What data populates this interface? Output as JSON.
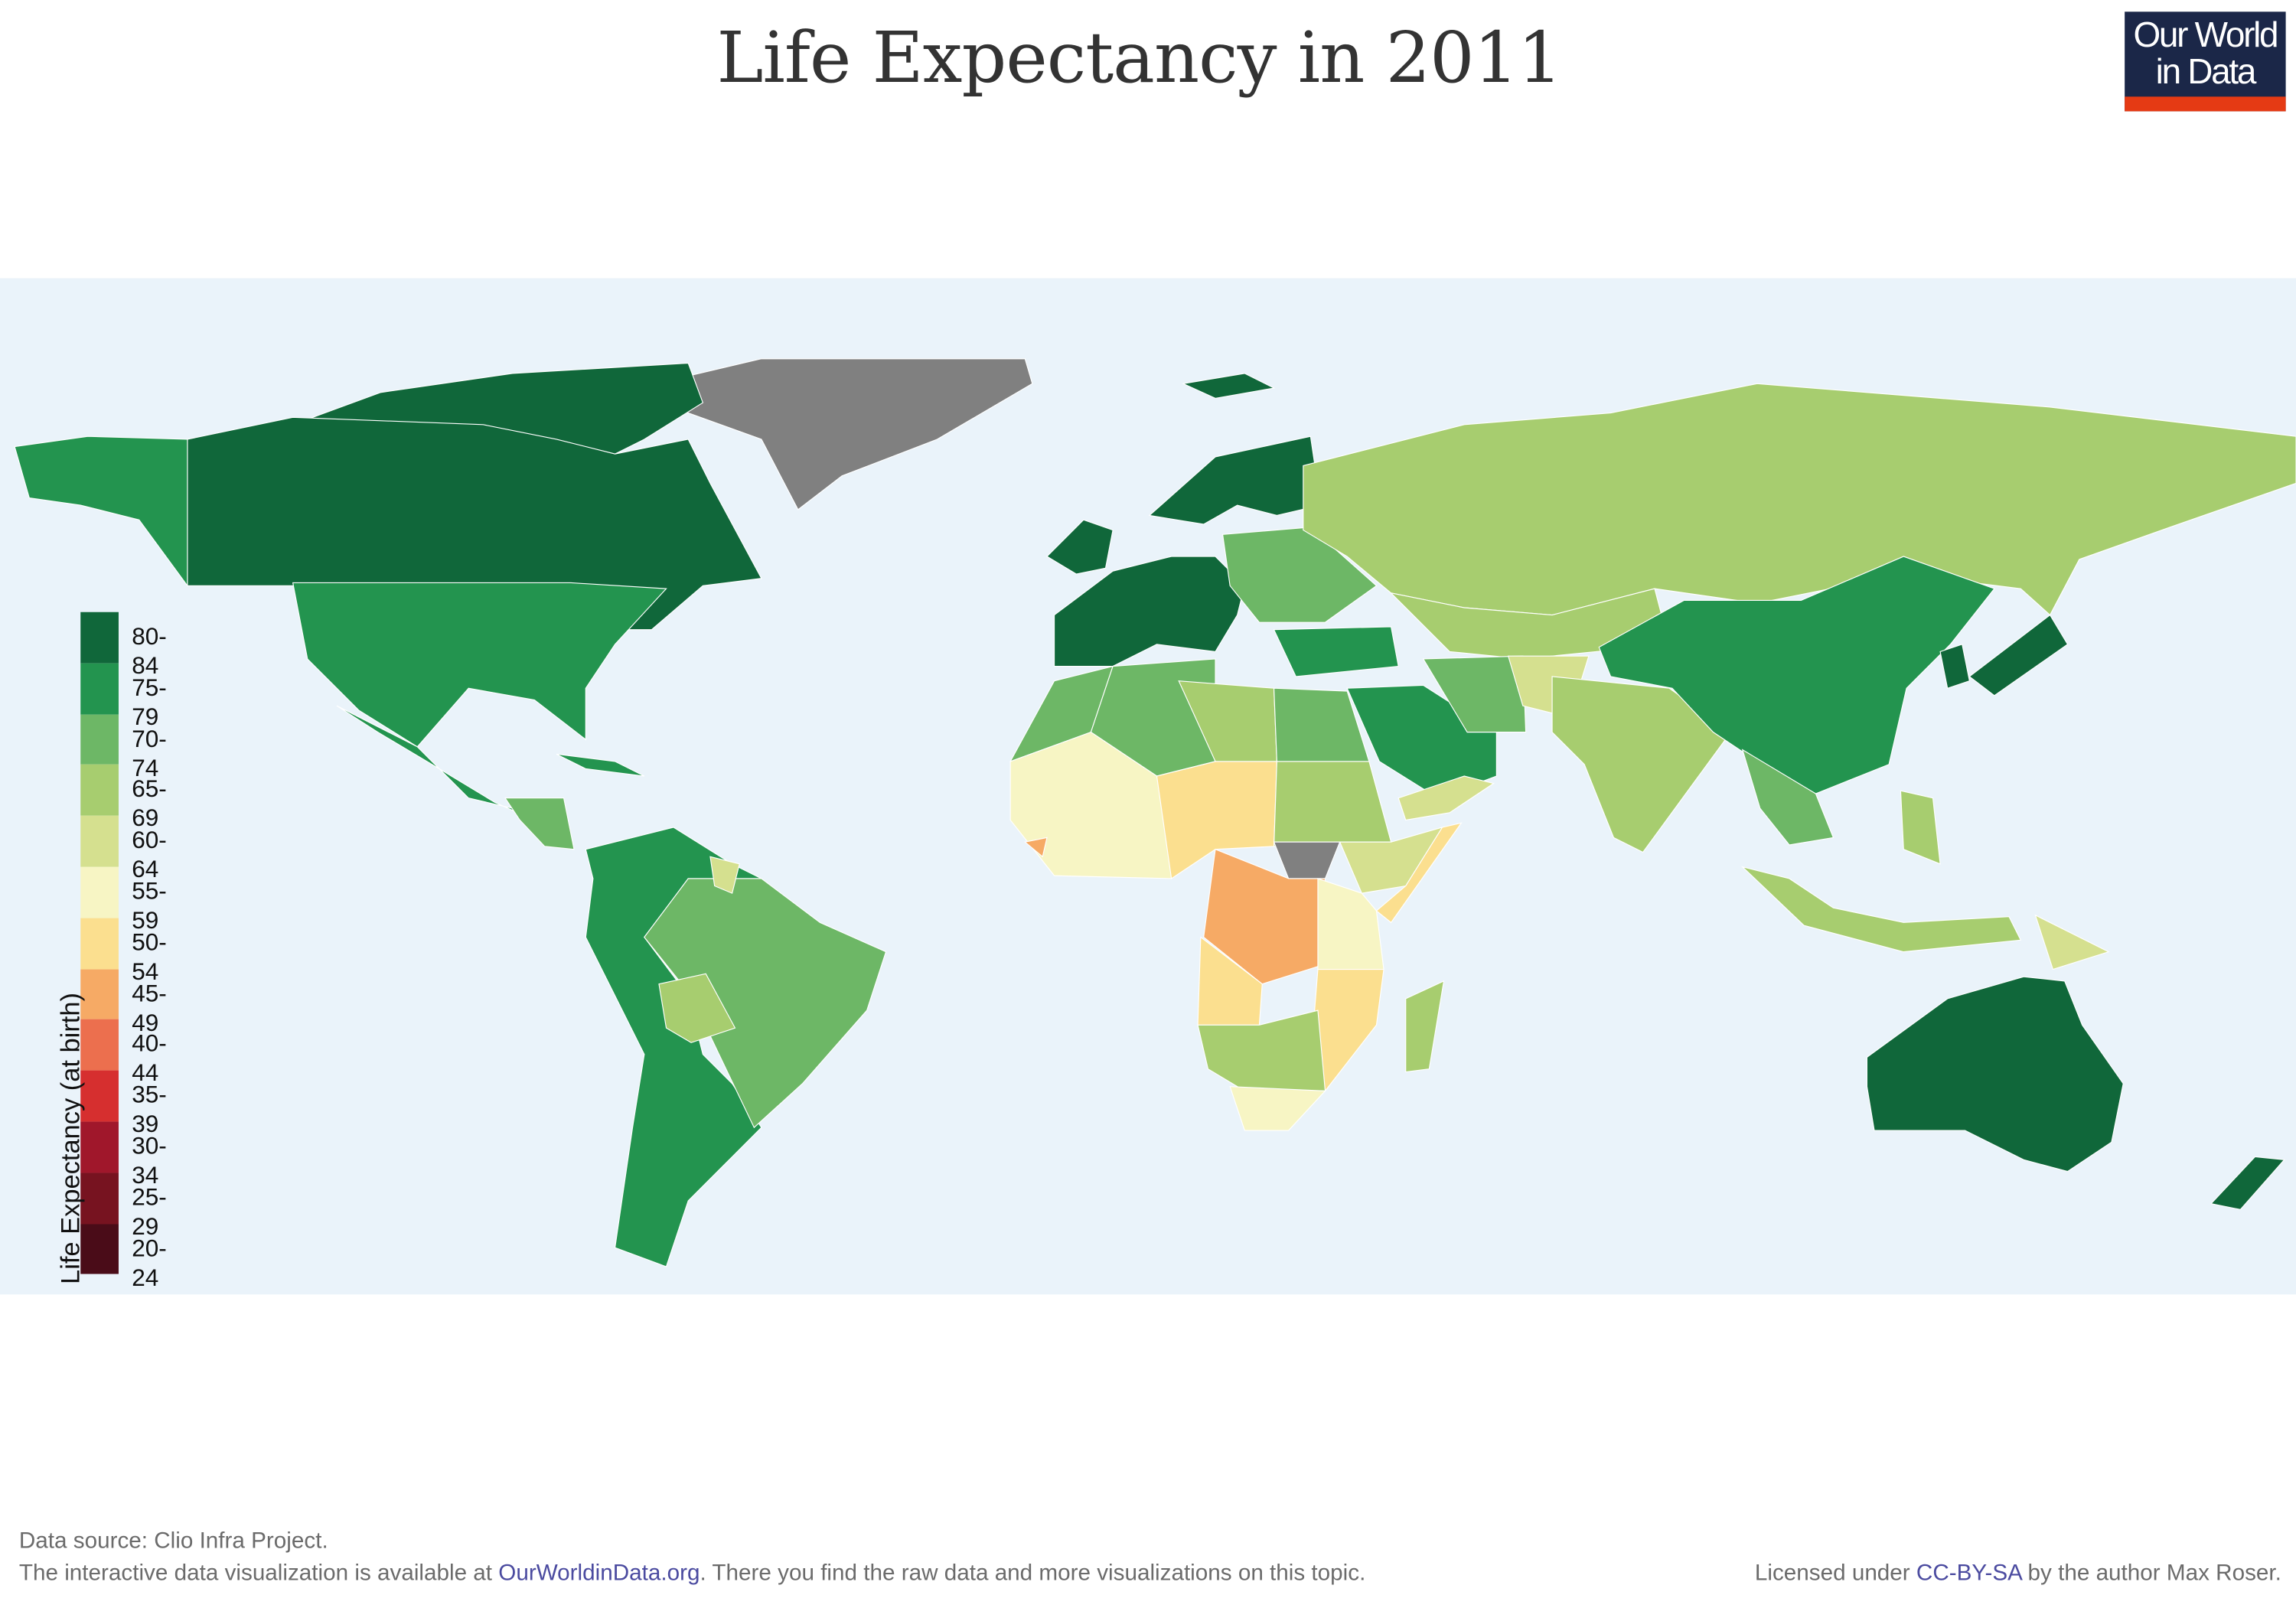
{
  "title": "Life Expectancy in 2011",
  "logo": {
    "line1": "Our World",
    "line2": "in Data",
    "bg": "#1b2748",
    "accent": "#e53a14"
  },
  "legend": {
    "title": "Life Expectancy (at birth)",
    "bins": [
      {
        "label": "80-84",
        "color": "#10673a"
      },
      {
        "label": "75-79",
        "color": "#23944f"
      },
      {
        "label": "70-74",
        "color": "#6db766"
      },
      {
        "label": "65-69",
        "color": "#a7cd6f"
      },
      {
        "label": "60-64",
        "color": "#d5e08f"
      },
      {
        "label": "55-59",
        "color": "#f7f5c4"
      },
      {
        "label": "50-54",
        "color": "#fbdf8f"
      },
      {
        "label": "45-49",
        "color": "#f6aa65"
      },
      {
        "label": "40-44",
        "color": "#ec6f4e"
      },
      {
        "label": "35-39",
        "color": "#d62f2f"
      },
      {
        "label": "30-34",
        "color": "#a0172b"
      },
      {
        "label": "25-29",
        "color": "#771320"
      },
      {
        "label": "20-24",
        "color": "#4a0c18"
      }
    ],
    "no_data_color": "#808080",
    "ocean_color": "#eaf3fa"
  },
  "map_data": {
    "greenland": null,
    "canada": "80-84",
    "arctic-islands": "80-84",
    "alaska": "75-79",
    "usa": "75-79",
    "mexico": "75-79",
    "central-america": "70-74",
    "caribbean": "75-79",
    "south-america-west": "75-79",
    "brazil": "70-74",
    "bolivia": "65-69",
    "guyana": "60-64",
    "iceland": "80-84",
    "uk": "80-84",
    "western-europe": "80-84",
    "scandinavia": "80-84",
    "eastern-europe": "70-74",
    "russia": "65-69",
    "kazakhstan": "65-69",
    "turkey": "75-79",
    "saudi-arabia": "75-79",
    "iran": "70-74",
    "afghanistan": "60-64",
    "yemen": "60-64",
    "india": "65-69",
    "china": "75-79",
    "southeast-asia": "70-74",
    "japan": "80-84",
    "korea": "80-84",
    "indonesia": "65-69",
    "philippines": "65-69",
    "papua-new-guinea": "60-64",
    "australia": "80-84",
    "new-zealand": "80-84",
    "morocco": "70-74",
    "algeria": "70-74",
    "libya": "65-69",
    "egypt": "70-74",
    "west-africa-sahel": "55-59",
    "niger-chad": "50-54",
    "sudan": "65-69",
    "south-sudan": null,
    "somalia": "50-54",
    "ethiopia": "60-64",
    "drc": "45-49",
    "angola": "50-54",
    "east-africa": "55-59",
    "southern-africa": "65-69",
    "mozambique": "50-54",
    "south-africa": "55-59",
    "madagascar": "65-69",
    "sierra-leone": "45-49"
  },
  "footer": {
    "source": "Data source: Clio Infra Project.",
    "line2_pre": "The interactive data visualization is available at ",
    "line2_link": "OurWorldinData.org",
    "line2_post": ". There you find the raw data and more visualizations on this topic.",
    "license_pre": "Licensed under ",
    "license_link": "CC-BY-SA",
    "license_post": " by the author Max Roser."
  }
}
